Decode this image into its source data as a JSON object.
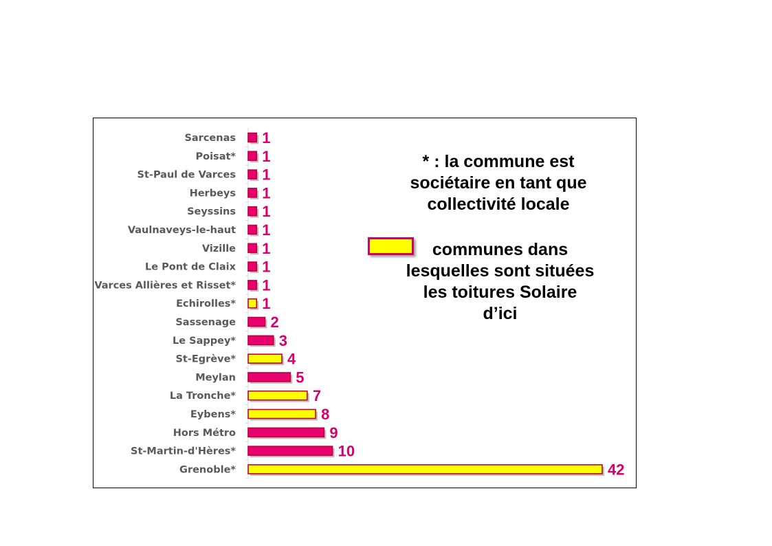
{
  "chart_data": {
    "type": "bar",
    "orientation": "horizontal",
    "categories": [
      "Sarcenas",
      "Poisat*",
      "St-Paul de Varces",
      "Herbeys",
      "Seyssins",
      "Vaulnaveys-le-haut",
      "Vizille",
      "Le Pont de Claix",
      "Varces Allières et Risset*",
      "Echirolles*",
      "Sassenage",
      "Le Sappey*",
      "St-Egrève*",
      "Meylan",
      "La Tronche*",
      "Eybens*",
      "Hors Métro",
      "St-Martin-d'Hères*",
      "Grenoble*"
    ],
    "values": [
      1,
      1,
      1,
      1,
      1,
      1,
      1,
      1,
      1,
      1,
      2,
      3,
      4,
      5,
      7,
      8,
      9,
      10,
      42
    ],
    "highlighted": [
      false,
      false,
      false,
      false,
      false,
      false,
      false,
      false,
      false,
      true,
      false,
      false,
      true,
      false,
      true,
      true,
      false,
      false,
      true
    ],
    "title": "",
    "xlabel": "",
    "ylabel": "",
    "xlim": [
      0,
      42
    ],
    "grid": false,
    "colors": {
      "default_bar": "#e8006f",
      "highlight_bar": "#ffff00",
      "bar_border": "#c0003a",
      "value_label": "#d4006e"
    }
  },
  "notes": {
    "star_note": [
      "* : la commune est",
      "sociétaire en tant que",
      "collectivité locale"
    ],
    "legend_note": [
      "communes dans",
      "lesquelles sont situées",
      "les toitures Solaire",
      "d’ici"
    ]
  }
}
